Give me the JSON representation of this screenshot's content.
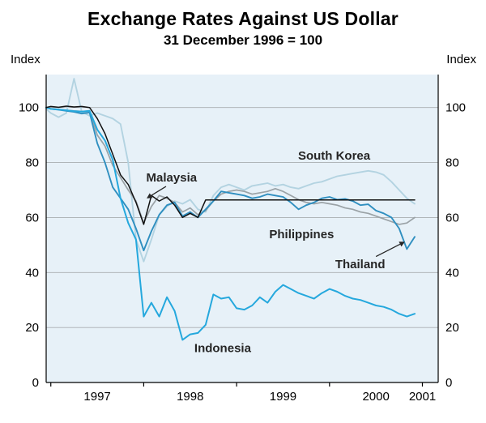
{
  "chart_data": {
    "type": "line",
    "title": "Exchange Rates Against US Dollar",
    "subtitle": "31 December 1996 = 100",
    "ylabel_left": "Index",
    "ylabel_right": "Index",
    "xlim": [
      1996.95,
      2001.17
    ],
    "ylim": [
      0,
      112
    ],
    "yticks": [
      0,
      20,
      40,
      60,
      80,
      100
    ],
    "xticks": [
      1997,
      1998,
      1999,
      2000,
      2001
    ],
    "xtick_labels": [
      {
        "label": "1997",
        "x": 1997.5
      },
      {
        "label": "1998",
        "x": 1998.5
      },
      {
        "label": "1999",
        "x": 1999.5
      },
      {
        "label": "2000",
        "x": 2000.5
      },
      {
        "label": "2001",
        "x": 2001.0
      }
    ],
    "grid": true,
    "legend": "in-plot labels",
    "colors": {
      "plot_bg": "#e7f1f8",
      "grid": "#a9adb0",
      "axis": "#000000",
      "label": "#262626"
    },
    "x": [
      1996.95,
      1997.0,
      1997.083,
      1997.167,
      1997.25,
      1997.333,
      1997.417,
      1997.5,
      1997.583,
      1997.667,
      1997.75,
      1997.833,
      1997.917,
      1998.0,
      1998.083,
      1998.167,
      1998.25,
      1998.333,
      1998.417,
      1998.5,
      1998.583,
      1998.667,
      1998.75,
      1998.833,
      1998.917,
      1999.0,
      1999.083,
      1999.167,
      1999.25,
      1999.333,
      1999.417,
      1999.5,
      1999.583,
      1999.667,
      1999.75,
      1999.833,
      1999.917,
      2000.0,
      2000.083,
      2000.167,
      2000.25,
      2000.333,
      2000.417,
      2000.5,
      2000.583,
      2000.667,
      2000.75,
      2000.833,
      2000.917
    ],
    "series": [
      {
        "name": "South Korea",
        "id": "south-korea",
        "color": "#b3d3e1",
        "width": 1.9,
        "values": [
          99.5,
          98.0,
          96.5,
          98.0,
          110.5,
          98.5,
          97.0,
          98.0,
          97.0,
          96.0,
          94.0,
          80.0,
          52.0,
          44.0,
          52.0,
          61.0,
          64.0,
          66.0,
          65.0,
          66.5,
          63.0,
          62.0,
          68.0,
          71.0,
          72.0,
          71.0,
          70.0,
          71.5,
          72.0,
          72.5,
          71.5,
          72.0,
          71.0,
          70.5,
          71.5,
          72.5,
          73.0,
          74.0,
          75.0,
          75.5,
          76.0,
          76.5,
          77.0,
          76.5,
          75.5,
          73.0,
          70.0,
          67.0,
          65.0
        ]
      },
      {
        "name": "Philippines",
        "id": "philippines",
        "color": "#9aa2a6",
        "width": 1.7,
        "values": [
          100,
          99.6,
          99.3,
          99.0,
          98.8,
          98.6,
          98.7,
          90.0,
          86.0,
          79.0,
          74.5,
          70.0,
          66.0,
          58.0,
          64.0,
          68.0,
          67.0,
          65.5,
          62.0,
          63.5,
          61.0,
          62.5,
          66.0,
          68.5,
          69.5,
          70.0,
          69.5,
          68.5,
          69.0,
          69.5,
          70.5,
          69.5,
          68.0,
          66.5,
          65.5,
          65.0,
          65.5,
          65.0,
          64.5,
          63.5,
          63.0,
          62.0,
          61.5,
          60.5,
          59.5,
          58.5,
          57.5,
          58.0,
          60.0
        ]
      },
      {
        "name": "Thailand",
        "id": "thailand",
        "color": "#2f8fc0",
        "width": 1.9,
        "values": [
          100,
          99.5,
          99.2,
          98.8,
          98.4,
          97.8,
          98.2,
          87.0,
          80.0,
          71.0,
          67.0,
          63.0,
          56.0,
          48.0,
          55.0,
          61.0,
          64.5,
          65.5,
          60.5,
          62.0,
          60.0,
          63.0,
          66.0,
          69.5,
          69.0,
          68.5,
          68.0,
          67.0,
          67.5,
          68.5,
          68.0,
          67.5,
          65.5,
          63.0,
          64.5,
          65.5,
          67.0,
          67.5,
          66.5,
          66.8,
          66.0,
          64.5,
          64.8,
          62.5,
          61.5,
          60.0,
          56.0,
          48.5,
          53.0
        ]
      },
      {
        "name": "Indonesia",
        "id": "indonesia",
        "color": "#25a8dd",
        "width": 2.0,
        "values": [
          100,
          99.5,
          99.3,
          99.0,
          98.7,
          98.5,
          98.8,
          92.0,
          88.0,
          81.0,
          67.0,
          58.0,
          52.0,
          24.0,
          29.0,
          24.0,
          31.0,
          26.0,
          15.5,
          17.5,
          18.0,
          21.0,
          32.0,
          30.5,
          31.0,
          27.0,
          26.5,
          28.0,
          31.0,
          29.0,
          33.0,
          35.5,
          34.0,
          32.5,
          31.5,
          30.5,
          32.5,
          34.0,
          33.0,
          31.5,
          30.5,
          30.0,
          29.0,
          28.0,
          27.5,
          26.5,
          25.0,
          24.0,
          25.0
        ]
      },
      {
        "name": "Malaysia",
        "id": "malaysia",
        "color": "#111111",
        "width": 1.5,
        "values": [
          100,
          100.4,
          100.1,
          100.5,
          100.2,
          100.4,
          100.0,
          96.0,
          90.5,
          83.0,
          75.5,
          72.0,
          65.5,
          57.5,
          68.0,
          66.0,
          67.5,
          64.5,
          60.0,
          61.5,
          60.0,
          66.4,
          66.4,
          66.4,
          66.4,
          66.4,
          66.4,
          66.4,
          66.4,
          66.4,
          66.4,
          66.4,
          66.4,
          66.4,
          66.4,
          66.4,
          66.4,
          66.4,
          66.4,
          66.4,
          66.4,
          66.4,
          66.4,
          66.4,
          66.4,
          66.4,
          66.4,
          66.4,
          66.4
        ]
      }
    ],
    "annotations": [
      {
        "id": "malaysia",
        "label": "Malaysia",
        "x": 1998.3,
        "y": 74.5,
        "arrow": {
          "x1": 1998.24,
          "y1": 71.3,
          "x2": 1998.08,
          "y2": 68.0
        }
      },
      {
        "id": "south-korea",
        "label": "South Korea",
        "x": 2000.05,
        "y": 82.5
      },
      {
        "id": "philippines",
        "label": "Philippines",
        "x": 1999.7,
        "y": 54.0
      },
      {
        "id": "thailand",
        "label": "Thailand",
        "x": 2000.33,
        "y": 43.0,
        "arrow": {
          "x1": 2000.5,
          "y1": 45.8,
          "x2": 2000.76,
          "y2": 50.3
        }
      },
      {
        "id": "indonesia",
        "label": "Indonesia",
        "x": 1998.85,
        "y": 12.5
      }
    ]
  }
}
